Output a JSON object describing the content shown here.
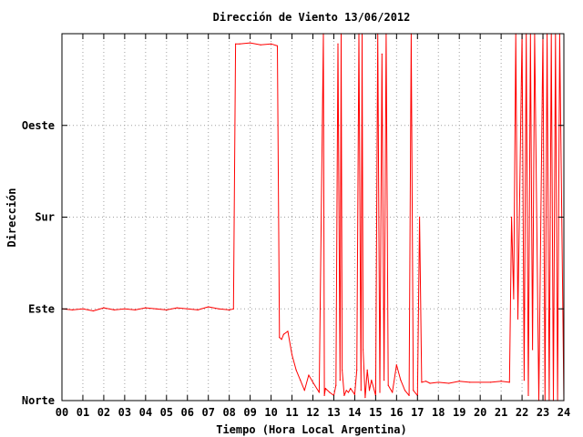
{
  "chart_data": {
    "type": "line",
    "title": "Dirección de Viento 13/06/2012",
    "xlabel": "Tiempo (Hora Local Argentina)",
    "ylabel": "Dirección",
    "xlim": [
      0,
      24
    ],
    "ylim": [
      0,
      360
    ],
    "x_ticks": [
      {
        "value": 0,
        "label": "00"
      },
      {
        "value": 1,
        "label": "01"
      },
      {
        "value": 2,
        "label": "02"
      },
      {
        "value": 3,
        "label": "03"
      },
      {
        "value": 4,
        "label": "04"
      },
      {
        "value": 5,
        "label": "05"
      },
      {
        "value": 6,
        "label": "06"
      },
      {
        "value": 7,
        "label": "07"
      },
      {
        "value": 8,
        "label": "08"
      },
      {
        "value": 9,
        "label": "09"
      },
      {
        "value": 10,
        "label": "10"
      },
      {
        "value": 11,
        "label": "11"
      },
      {
        "value": 12,
        "label": "12"
      },
      {
        "value": 13,
        "label": "13"
      },
      {
        "value": 14,
        "label": "14"
      },
      {
        "value": 15,
        "label": "15"
      },
      {
        "value": 16,
        "label": "16"
      },
      {
        "value": 17,
        "label": "17"
      },
      {
        "value": 18,
        "label": "18"
      },
      {
        "value": 19,
        "label": "19"
      },
      {
        "value": 20,
        "label": "20"
      },
      {
        "value": 21,
        "label": "21"
      },
      {
        "value": 22,
        "label": "22"
      },
      {
        "value": 23,
        "label": "23"
      },
      {
        "value": 24,
        "label": "24"
      }
    ],
    "y_ticks": [
      {
        "value": 0,
        "label": "Norte"
      },
      {
        "value": 90,
        "label": "Este"
      },
      {
        "value": 180,
        "label": "Sur"
      },
      {
        "value": 270,
        "label": "Oeste"
      }
    ],
    "grid": true,
    "series": [
      {
        "color": "#ff0000",
        "x": [
          0,
          0.5,
          1,
          1.5,
          2,
          2.5,
          3,
          3.5,
          4,
          4.5,
          5,
          5.5,
          6,
          6.5,
          7,
          7.5,
          8,
          8.2,
          8.3,
          8.5,
          9,
          9.5,
          10,
          10.3,
          10.4,
          10.5,
          10.6,
          10.8,
          11,
          11.2,
          11.4,
          11.6,
          11.8,
          12,
          12.3,
          12.5,
          12.55,
          12.6,
          12.8,
          13,
          13.1,
          13.2,
          13.3,
          13.35,
          13.4,
          13.5,
          13.6,
          13.7,
          13.8,
          14,
          14.1,
          14.2,
          14.3,
          14.35,
          14.4,
          14.5,
          14.6,
          14.7,
          14.8,
          15,
          15.1,
          15.2,
          15.3,
          15.4,
          15.5,
          15.6,
          15.8,
          16,
          16.2,
          16.4,
          16.6,
          16.7,
          16.8,
          17,
          17.1,
          17.2,
          17.4,
          17.6,
          18,
          18.5,
          19,
          19.5,
          20,
          20.5,
          21,
          21.4,
          21.5,
          21.6,
          21.7,
          21.8,
          22,
          22.1,
          22.2,
          22.3,
          22.4,
          22.5,
          22.6,
          22.8,
          23,
          23.1,
          23.2,
          23.3,
          23.4,
          23.5,
          23.6,
          23.7,
          23.8,
          24
        ],
        "y": [
          90,
          89,
          90,
          88,
          91,
          89,
          90,
          89,
          91,
          90,
          89,
          91,
          90,
          89,
          92,
          90,
          89,
          90,
          350,
          350,
          351,
          349,
          350,
          348,
          62,
          60,
          65,
          68,
          45,
          30,
          20,
          10,
          25,
          18,
          8,
          360,
          5,
          12,
          8,
          5,
          15,
          350,
          20,
          360,
          30,
          5,
          10,
          8,
          12,
          6,
          30,
          360,
          10,
          360,
          50,
          3,
          30,
          10,
          20,
          5,
          360,
          8,
          340,
          20,
          360,
          15,
          8,
          35,
          20,
          10,
          5,
          360,
          10,
          5,
          180,
          18,
          19,
          17,
          18,
          17,
          19,
          18,
          18,
          18,
          19,
          18,
          180,
          100,
          360,
          80,
          360,
          20,
          360,
          5,
          360,
          50,
          360,
          0,
          360,
          0,
          360,
          0,
          360,
          0,
          360,
          0,
          360,
          0
        ]
      }
    ]
  }
}
